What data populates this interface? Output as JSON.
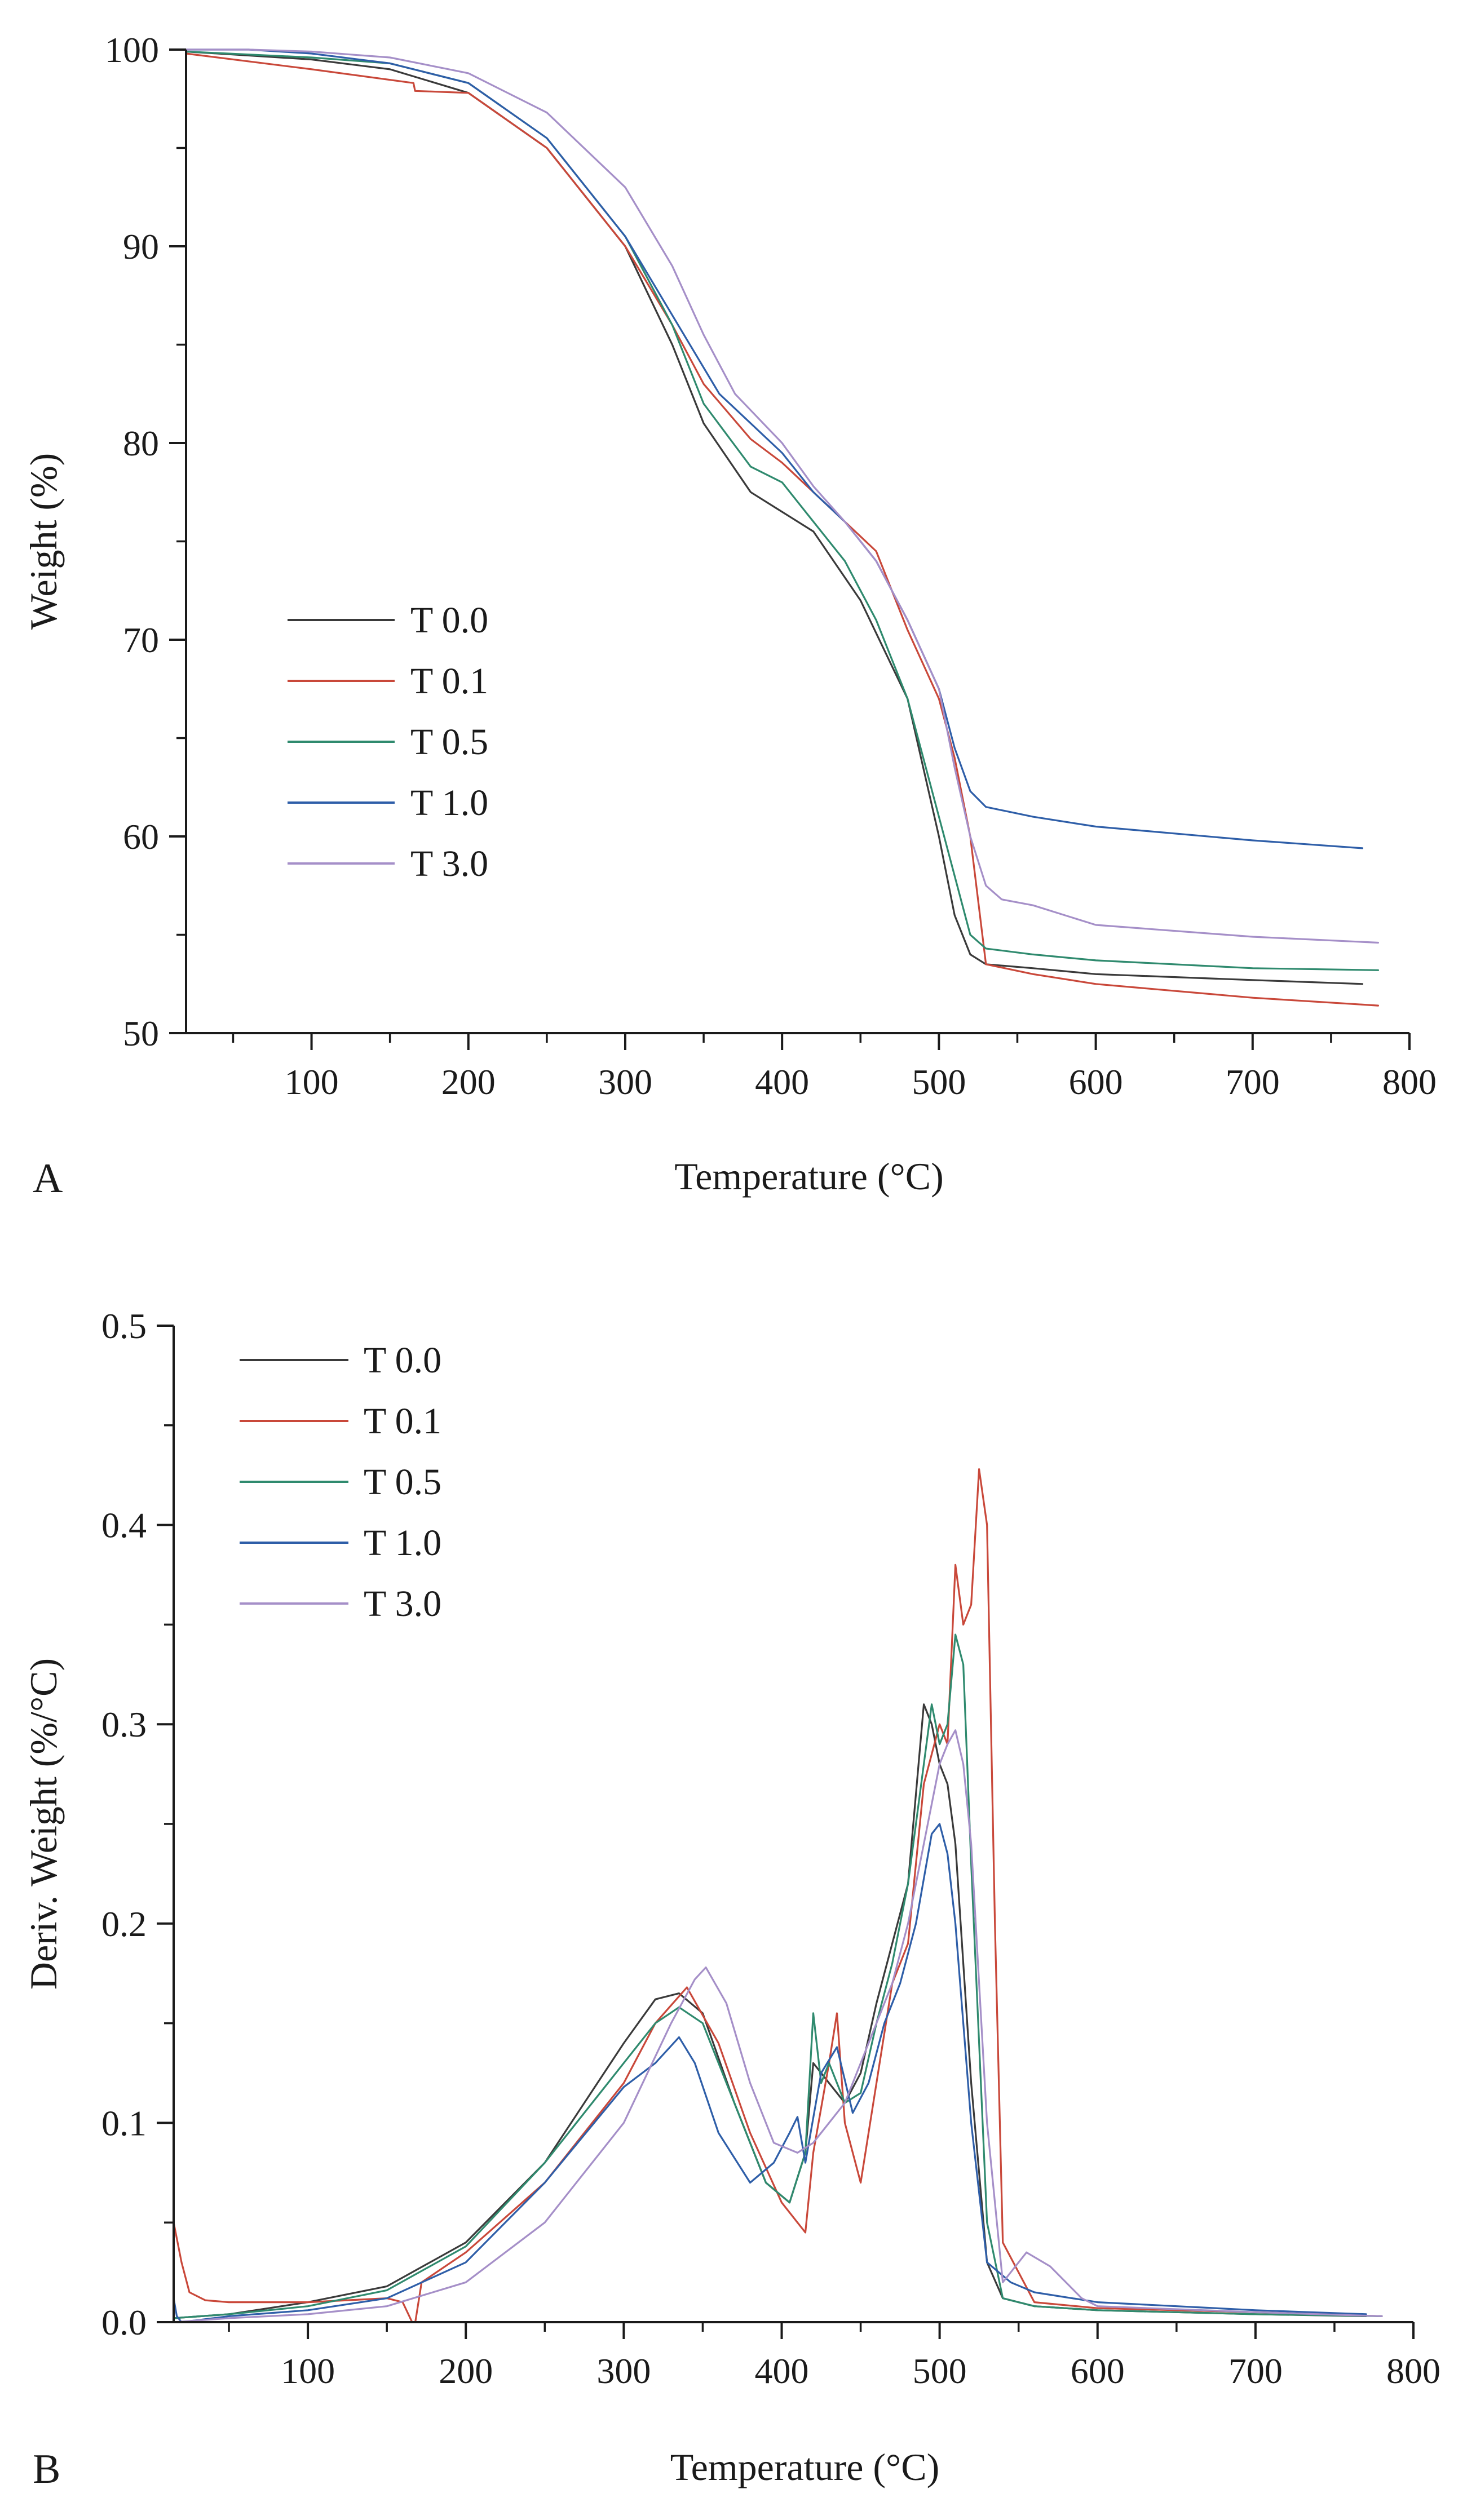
{
  "chart_data": [
    {
      "type": "line",
      "panel_label": "A",
      "title": "",
      "xlabel": "Temperature (°C)",
      "ylabel": "Weight (%)",
      "xlim": [
        20,
        800
      ],
      "ylim": [
        50,
        100
      ],
      "xticks": [
        100,
        200,
        300,
        400,
        500,
        600,
        700,
        800
      ],
      "yticks": [
        50,
        60,
        70,
        80,
        90,
        100
      ],
      "xtick_labels": [
        "100",
        "200",
        "300",
        "400",
        "500",
        "600",
        "700",
        "800"
      ],
      "ytick_labels": [
        "50",
        "60",
        "70",
        "80",
        "90",
        "100"
      ],
      "grid": false,
      "legend_position": "center-left",
      "series": [
        {
          "name": "T 0.0",
          "color": "#3a3a3a",
          "x": [
            20,
            100,
            150,
            200,
            250,
            300,
            330,
            350,
            380,
            400,
            420,
            450,
            480,
            500,
            510,
            520,
            530,
            560,
            600,
            700,
            770
          ],
          "y": [
            99.9,
            99.5,
            99,
            97.8,
            95,
            90,
            85,
            81,
            77.5,
            76.5,
            75.5,
            72,
            67,
            60,
            56,
            54,
            53.5,
            53.3,
            53,
            52.7,
            52.5
          ]
        },
        {
          "name": "T 0.1",
          "color": "#c9483a",
          "x": [
            20,
            100,
            165,
            166,
            200,
            250,
            300,
            330,
            350,
            380,
            400,
            420,
            440,
            460,
            480,
            500,
            510,
            520,
            530,
            560,
            600,
            700,
            780
          ],
          "y": [
            99.8,
            99,
            98.3,
            97.9,
            97.8,
            95,
            90,
            86,
            83,
            80.2,
            79,
            77.5,
            76,
            74.5,
            70.5,
            67,
            64,
            60,
            53.5,
            53,
            52.5,
            51.8,
            51.4
          ]
        },
        {
          "name": "T 0.5",
          "color": "#2f8a6e",
          "x": [
            20,
            100,
            150,
            200,
            250,
            300,
            330,
            350,
            380,
            400,
            420,
            440,
            460,
            480,
            500,
            510,
            520,
            530,
            560,
            600,
            700,
            780
          ],
          "y": [
            99.9,
            99.6,
            99.3,
            98.3,
            95.5,
            90.5,
            86,
            82,
            78.8,
            78,
            76,
            74,
            71,
            67,
            61,
            58,
            55,
            54.3,
            54,
            53.7,
            53.3,
            53.2
          ]
        },
        {
          "name": "T 1.0",
          "color": "#2e5ea8",
          "x": [
            20,
            60,
            100,
            150,
            200,
            250,
            300,
            330,
            360,
            380,
            400,
            420,
            440,
            460,
            480,
            500,
            510,
            520,
            530,
            560,
            600,
            700,
            770
          ],
          "y": [
            100,
            100,
            99.8,
            99.3,
            98.3,
            95.5,
            90.5,
            86.5,
            82.5,
            81,
            79.5,
            77.5,
            76,
            74,
            71,
            67.5,
            64.5,
            62.3,
            61.5,
            61,
            60.5,
            59.8,
            59.4
          ]
        },
        {
          "name": "T 3.0",
          "color": "#a58fc8",
          "x": [
            20,
            60,
            100,
            150,
            200,
            250,
            300,
            330,
            350,
            370,
            400,
            420,
            440,
            460,
            480,
            500,
            510,
            520,
            530,
            540,
            560,
            600,
            700,
            780
          ],
          "y": [
            100,
            100,
            99.9,
            99.6,
            98.8,
            96.8,
            93,
            89,
            85.5,
            82.5,
            80,
            77.8,
            76,
            74,
            71,
            67.5,
            63.5,
            60,
            57.5,
            56.8,
            56.5,
            55.5,
            54.9,
            54.6
          ]
        }
      ]
    },
    {
      "type": "line",
      "panel_label": "B",
      "title": "",
      "xlabel": "Temperature (°C)",
      "ylabel": "Deriv. Weight (%/°C)",
      "xlim": [
        15,
        800
      ],
      "ylim": [
        0,
        0.5
      ],
      "xticks": [
        100,
        200,
        300,
        400,
        500,
        600,
        700,
        800
      ],
      "yticks": [
        0,
        0.1,
        0.2,
        0.3,
        0.4,
        0.5
      ],
      "xtick_labels": [
        "100",
        "200",
        "300",
        "400",
        "500",
        "600",
        "700",
        "800"
      ],
      "ytick_labels": [
        "0.0",
        "0.1",
        "0.2",
        "0.3",
        "0.4",
        "0.5"
      ],
      "grid": false,
      "legend_position": "top-left",
      "series": [
        {
          "name": "T 0.0",
          "color": "#3a3a3a",
          "x": [
            15,
            50,
            100,
            150,
            200,
            250,
            300,
            320,
            335,
            350,
            370,
            390,
            405,
            415,
            420,
            430,
            440,
            450,
            460,
            470,
            480,
            490,
            495,
            500,
            505,
            510,
            520,
            530,
            540,
            560,
            600,
            700,
            770
          ],
          "y": [
            0.002,
            0.004,
            0.01,
            0.018,
            0.04,
            0.08,
            0.14,
            0.162,
            0.165,
            0.155,
            0.11,
            0.07,
            0.06,
            0.085,
            0.13,
            0.12,
            0.11,
            0.125,
            0.16,
            0.19,
            0.22,
            0.31,
            0.3,
            0.28,
            0.27,
            0.24,
            0.12,
            0.03,
            0.012,
            0.008,
            0.006,
            0.004,
            0.003
          ]
        },
        {
          "name": "T 0.1",
          "color": "#c9483a",
          "x": [
            15,
            20,
            25,
            35,
            50,
            100,
            150,
            160,
            166,
            168,
            172,
            200,
            250,
            300,
            320,
            340,
            360,
            380,
            400,
            410,
            415,
            420,
            430,
            435,
            440,
            450,
            460,
            470,
            480,
            490,
            500,
            505,
            510,
            515,
            520,
            525,
            530,
            535,
            540,
            560,
            600,
            700,
            780
          ],
          "y": [
            0.05,
            0.03,
            0.015,
            0.011,
            0.01,
            0.01,
            0.012,
            0.01,
            0.0,
            0.0,
            0.02,
            0.035,
            0.07,
            0.12,
            0.15,
            0.168,
            0.14,
            0.095,
            0.06,
            0.05,
            0.045,
            0.085,
            0.13,
            0.155,
            0.1,
            0.07,
            0.12,
            0.17,
            0.19,
            0.27,
            0.3,
            0.29,
            0.38,
            0.35,
            0.36,
            0.428,
            0.4,
            0.2,
            0.04,
            0.01,
            0.007,
            0.005,
            0.003
          ]
        },
        {
          "name": "T 0.5",
          "color": "#2f8a6e",
          "x": [
            15,
            50,
            100,
            150,
            200,
            250,
            300,
            320,
            335,
            350,
            370,
            390,
            405,
            415,
            420,
            425,
            430,
            440,
            450,
            460,
            470,
            480,
            490,
            495,
            500,
            505,
            510,
            515,
            520,
            530,
            540,
            560,
            600,
            700,
            780
          ],
          "y": [
            0.002,
            0.004,
            0.008,
            0.016,
            0.038,
            0.08,
            0.13,
            0.15,
            0.158,
            0.15,
            0.11,
            0.07,
            0.06,
            0.085,
            0.155,
            0.12,
            0.13,
            0.11,
            0.115,
            0.15,
            0.18,
            0.22,
            0.28,
            0.31,
            0.29,
            0.3,
            0.345,
            0.33,
            0.23,
            0.05,
            0.012,
            0.008,
            0.006,
            0.004,
            0.003
          ]
        },
        {
          "name": "T 1.0",
          "color": "#2e5ea8",
          "x": [
            15,
            17,
            20,
            50,
            100,
            150,
            200,
            250,
            300,
            320,
            335,
            345,
            360,
            380,
            395,
            405,
            410,
            415,
            425,
            435,
            445,
            455,
            465,
            475,
            485,
            495,
            500,
            505,
            510,
            520,
            530,
            545,
            560,
            600,
            700,
            770
          ],
          "y": [
            0.012,
            0.003,
            0.0,
            0.003,
            0.006,
            0.012,
            0.03,
            0.07,
            0.118,
            0.13,
            0.143,
            0.13,
            0.095,
            0.07,
            0.08,
            0.095,
            0.103,
            0.08,
            0.125,
            0.138,
            0.105,
            0.12,
            0.15,
            0.17,
            0.2,
            0.245,
            0.25,
            0.235,
            0.2,
            0.1,
            0.03,
            0.02,
            0.015,
            0.01,
            0.006,
            0.004
          ]
        },
        {
          "name": "T 3.0",
          "color": "#a58fc8",
          "x": [
            15,
            50,
            100,
            150,
            200,
            250,
            300,
            330,
            345,
            352,
            365,
            380,
            395,
            410,
            420,
            430,
            440,
            450,
            460,
            470,
            480,
            490,
            500,
            505,
            510,
            515,
            520,
            530,
            540,
            555,
            570,
            590,
            600,
            700,
            780
          ],
          "y": [
            0.0,
            0.002,
            0.004,
            0.008,
            0.02,
            0.05,
            0.1,
            0.15,
            0.172,
            0.178,
            0.16,
            0.12,
            0.09,
            0.085,
            0.09,
            0.1,
            0.11,
            0.13,
            0.15,
            0.17,
            0.2,
            0.24,
            0.28,
            0.29,
            0.297,
            0.28,
            0.24,
            0.1,
            0.02,
            0.035,
            0.028,
            0.012,
            0.008,
            0.005,
            0.003
          ]
        }
      ]
    }
  ]
}
